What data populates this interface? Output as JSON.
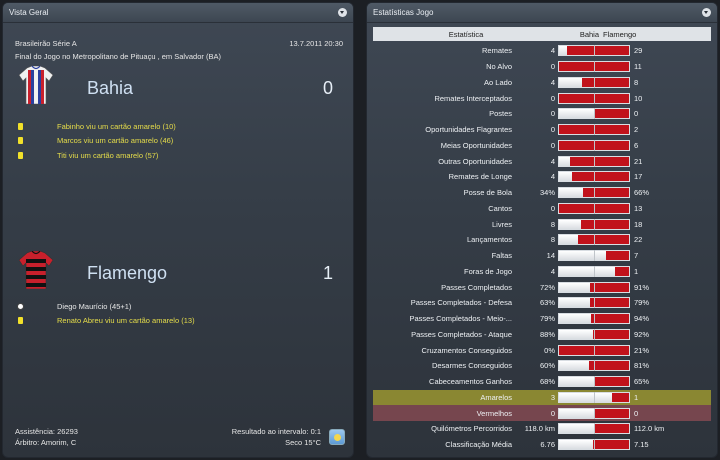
{
  "left_panel": {
    "title": "Vista Geral"
  },
  "match": {
    "competition": "Brasileirão Série A",
    "datetime": "13.7.2011 20:30",
    "description": "Final do Jogo no Metropolitano de Pituaçu , em Salvador (BA)"
  },
  "home": {
    "name": "Bahia",
    "score": "0",
    "colors": {
      "stripe1": "#2a3f9e",
      "stripe2": "#c8202c",
      "base": "#f0f0f0"
    },
    "events": [
      {
        "type": "yellow-card",
        "text": "Fabinho viu um cartão amarelo (10)"
      },
      {
        "type": "yellow-card",
        "text": "Marcos viu um cartão amarelo (46)"
      },
      {
        "type": "yellow-card",
        "text": "Titi viu um cartão amarelo (57)"
      }
    ]
  },
  "away": {
    "name": "Flamengo",
    "score": "1",
    "colors": {
      "stripe1": "#c8202c",
      "stripe2": "#111111"
    },
    "events": [
      {
        "type": "goal",
        "text": "Diego Maurício (45+1)"
      },
      {
        "type": "yellow-card",
        "text": "Renato Abreu viu um cartão amarelo (13)"
      }
    ]
  },
  "footer": {
    "attendance": "Assistência: 26293",
    "referee": "Árbitro: Amorim, C",
    "halftime": "Resultado ao intervalo: 0:1",
    "weather": "Seco 15°C",
    "weather_icon": "sun-icon"
  },
  "right_panel": {
    "title": "Estatísticas Jogo"
  },
  "stats_header": {
    "label": "Estatística",
    "home": "Bahia",
    "away": "Flamengo"
  },
  "stats": [
    {
      "label": "Remates",
      "home": "4",
      "away": "29",
      "home_share": 0.12
    },
    {
      "label": "No Alvo",
      "home": "0",
      "away": "11",
      "home_share": 0.0
    },
    {
      "label": "Ao Lado",
      "home": "4",
      "away": "8",
      "home_share": 0.33
    },
    {
      "label": "Remates Interceptados",
      "home": "0",
      "away": "10",
      "home_share": 0.0
    },
    {
      "label": "Postes",
      "home": "0",
      "away": "0",
      "home_share": 0.5
    },
    {
      "label": "Oportunidades Flagrantes",
      "home": "0",
      "away": "2",
      "home_share": 0.0
    },
    {
      "label": "Meias Oportunidades",
      "home": "0",
      "away": "6",
      "home_share": 0.0
    },
    {
      "label": "Outras Oportunidades",
      "home": "4",
      "away": "21",
      "home_share": 0.16
    },
    {
      "label": "Remates de Longe",
      "home": "4",
      "away": "17",
      "home_share": 0.19
    },
    {
      "label": "Posse de Bola",
      "home": "34%",
      "away": "66%",
      "home_share": 0.34
    },
    {
      "label": "Cantos",
      "home": "0",
      "away": "13",
      "home_share": 0.0
    },
    {
      "label": "Livres",
      "home": "8",
      "away": "18",
      "home_share": 0.31
    },
    {
      "label": "Lançamentos",
      "home": "8",
      "away": "22",
      "home_share": 0.27
    },
    {
      "label": "Faltas",
      "home": "14",
      "away": "7",
      "home_share": 0.67
    },
    {
      "label": "Foras de Jogo",
      "home": "4",
      "away": "1",
      "home_share": 0.8
    },
    {
      "label": "Passes Completados",
      "home": "72%",
      "away": "91%",
      "home_share": 0.44
    },
    {
      "label": "Passes Completados - Defesa",
      "home": "63%",
      "away": "79%",
      "home_share": 0.44
    },
    {
      "label": "Passes Completados - Meio-...",
      "home": "79%",
      "away": "94%",
      "home_share": 0.46
    },
    {
      "label": "Passes Completados - Ataque",
      "home": "88%",
      "away": "92%",
      "home_share": 0.49
    },
    {
      "label": "Cruzamentos Conseguidos",
      "home": "0%",
      "away": "21%",
      "home_share": 0.0
    },
    {
      "label": "Desarmes Conseguidos",
      "home": "60%",
      "away": "81%",
      "home_share": 0.43
    },
    {
      "label": "Cabeceamentos Ganhos",
      "home": "68%",
      "away": "65%",
      "home_share": 0.51
    },
    {
      "label": "Amarelos",
      "home": "3",
      "away": "1",
      "home_share": 0.75,
      "highlight": "amarelos"
    },
    {
      "label": "Vermelhos",
      "home": "0",
      "away": "0",
      "home_share": 0.5,
      "highlight": "vermelhos"
    },
    {
      "label": "Quilómetros Percorridos",
      "home": "118.0 km",
      "away": "112.0 km",
      "home_share": 0.51
    },
    {
      "label": "Classificação Média",
      "home": "6.76",
      "away": "7.15",
      "home_share": 0.49
    }
  ]
}
